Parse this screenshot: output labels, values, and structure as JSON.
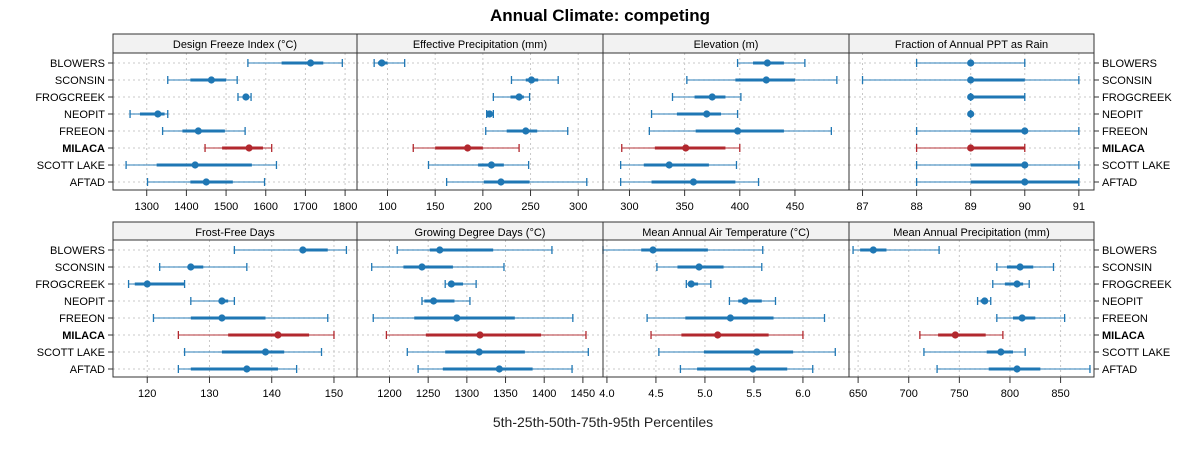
{
  "chart_data": {
    "type": "dotplot",
    "title": "Annual Climate: competing",
    "xlabel": "5th-25th-50th-75th-95th Percentiles",
    "sites": [
      "BLOWERS",
      "SCONSIN",
      "FROGCREEK",
      "NEOPIT",
      "FREEON",
      "MILACA",
      "SCOTT LAKE",
      "AFTAD"
    ],
    "highlight_site": "MILACA",
    "colors": {
      "default": "#1f77b4",
      "highlight": "#b2282e",
      "strip_bg": "#f2f2f2",
      "grid": "#c8c8c8"
    },
    "grid": true,
    "panels": [
      {
        "title": "Design Freeze Index (°C)",
        "xlim": [
          1215,
          1830
        ],
        "ticks": [
          1300,
          1400,
          1500,
          1600,
          1700,
          1800
        ],
        "tick_labels": [
          "1300",
          "1400",
          "1500",
          "1600",
          "1700",
          "1800"
        ],
        "percentiles": [
          [
            1555,
            1640,
            1713,
            1745,
            1793
          ],
          [
            1353,
            1410,
            1463,
            1500,
            1528
          ],
          [
            1530,
            1543,
            1550,
            1558,
            1563
          ],
          [
            1258,
            1283,
            1328,
            1345,
            1353
          ],
          [
            1340,
            1390,
            1430,
            1497,
            1548
          ],
          [
            1447,
            1490,
            1558,
            1593,
            1615
          ],
          [
            1248,
            1325,
            1422,
            1565,
            1627
          ],
          [
            1302,
            1410,
            1450,
            1517,
            1597
          ]
        ]
      },
      {
        "title": "Effective Precipitation (mm)",
        "xlim": [
          68,
          326
        ],
        "ticks": [
          100,
          150,
          200,
          250,
          300
        ],
        "tick_labels": [
          "100",
          "150",
          "200",
          "250",
          "300"
        ],
        "percentiles": [
          [
            86,
            90,
            94,
            100,
            118
          ],
          [
            230,
            245,
            251,
            258,
            279
          ],
          [
            211,
            229,
            238,
            243,
            249
          ],
          [
            204,
            205,
            207,
            209,
            211
          ],
          [
            203,
            225,
            245,
            257,
            289
          ],
          [
            127,
            150,
            184,
            200,
            238
          ],
          [
            143,
            195,
            209,
            222,
            248
          ],
          [
            162,
            201,
            219,
            249,
            309
          ]
        ]
      },
      {
        "title": "Elevation (m)",
        "xlim": [
          276,
          499
        ],
        "ticks": [
          300,
          350,
          400,
          450
        ],
        "tick_labels": [
          "300",
          "350",
          "400",
          "450"
        ],
        "percentiles": [
          [
            398,
            412,
            425,
            440,
            459
          ],
          [
            352,
            396,
            424,
            450,
            488
          ],
          [
            339,
            359,
            375,
            387,
            401
          ],
          [
            320,
            343,
            370,
            383,
            398
          ],
          [
            318,
            360,
            398,
            440,
            483
          ],
          [
            293,
            323,
            351,
            387,
            400
          ],
          [
            292,
            313,
            336,
            372,
            397
          ],
          [
            292,
            320,
            358,
            396,
            417
          ]
        ]
      },
      {
        "title": "Fraction of Annual PPT as Rain",
        "xlim": [
          86.75,
          91.28
        ],
        "ticks": [
          87,
          88,
          89,
          90,
          91
        ],
        "tick_labels": [
          "87",
          "88",
          "89",
          "90",
          "91"
        ],
        "percentiles": [
          [
            88,
            89,
            89,
            89,
            90
          ],
          [
            87,
            89,
            89,
            90,
            91
          ],
          [
            89,
            89,
            89,
            90,
            90
          ],
          [
            89,
            89,
            89,
            89,
            89
          ],
          [
            88,
            89,
            90,
            90,
            91
          ],
          [
            88,
            89,
            89,
            90,
            90
          ],
          [
            88,
            89,
            90,
            90,
            91
          ],
          [
            88,
            89,
            90,
            91,
            91
          ]
        ]
      },
      {
        "title": "Frost-Free Days",
        "xlim": [
          114.5,
          153.7
        ],
        "ticks": [
          120,
          130,
          140,
          150
        ],
        "tick_labels": [
          "120",
          "130",
          "140",
          "150"
        ],
        "percentiles": [
          [
            134,
            145,
            145,
            149,
            152
          ],
          [
            122,
            127,
            127,
            129,
            136
          ],
          [
            117,
            118,
            120,
            126,
            126
          ],
          [
            127,
            132,
            132,
            133,
            134
          ],
          [
            121,
            127,
            132,
            139,
            149
          ],
          [
            125,
            133,
            141,
            146,
            150
          ],
          [
            126,
            132,
            139,
            142,
            148
          ],
          [
            125,
            127,
            136,
            141,
            144
          ]
        ]
      },
      {
        "title": "Growing Degree Days (°C)",
        "xlim": [
          1158,
          1476
        ],
        "ticks": [
          1200,
          1250,
          1300,
          1350,
          1400,
          1450
        ],
        "tick_labels": [
          "1200",
          "1250",
          "1300",
          "1350",
          "1400",
          "1450"
        ],
        "percentiles": [
          [
            1210,
            1252,
            1265,
            1334,
            1410
          ],
          [
            1177,
            1218,
            1242,
            1282,
            1348
          ],
          [
            1272,
            1282,
            1280,
            1295,
            1312
          ],
          [
            1242,
            1245,
            1257,
            1284,
            1304
          ],
          [
            1179,
            1232,
            1287,
            1362,
            1437
          ],
          [
            1196,
            1247,
            1317,
            1396,
            1454
          ],
          [
            1223,
            1272,
            1316,
            1375,
            1457
          ],
          [
            1237,
            1269,
            1342,
            1385,
            1436
          ]
        ]
      },
      {
        "title": "Mean Annual Air Temperature (°C)",
        "xlim": [
          3.96,
          6.47
        ],
        "ticks": [
          4.0,
          4.5,
          5.0,
          5.5,
          6.0
        ],
        "tick_labels": [
          "4.0",
          "4.5",
          "5.0",
          "5.5",
          "6.0"
        ],
        "percentiles": [
          [
            3.96,
            4.35,
            4.47,
            5.03,
            5.59
          ],
          [
            4.51,
            4.72,
            4.94,
            5.19,
            5.58
          ],
          [
            4.81,
            4.84,
            4.86,
            4.93,
            5.06
          ],
          [
            5.25,
            5.34,
            5.41,
            5.58,
            5.72
          ],
          [
            4.41,
            4.8,
            5.26,
            5.7,
            6.22
          ],
          [
            4.45,
            4.76,
            5.13,
            5.65,
            6.0
          ],
          [
            4.53,
            4.99,
            5.53,
            5.9,
            6.33
          ],
          [
            4.75,
            4.92,
            5.49,
            5.84,
            6.1
          ]
        ]
      },
      {
        "title": "Mean Annual Precipitation (mm)",
        "xlim": [
          641,
          883
        ],
        "ticks": [
          650,
          700,
          750,
          800,
          850
        ],
        "tick_labels": [
          "650",
          "700",
          "750",
          "800",
          "850"
        ],
        "percentiles": [
          [
            645,
            652,
            665,
            678,
            730
          ],
          [
            787,
            797,
            810,
            823,
            843
          ],
          [
            783,
            795,
            807,
            813,
            819
          ],
          [
            768,
            771,
            775,
            777,
            781
          ],
          [
            787,
            803,
            812,
            825,
            854
          ],
          [
            711,
            729,
            746,
            776,
            793
          ],
          [
            715,
            777,
            791,
            803,
            815
          ],
          [
            728,
            779,
            807,
            830,
            879
          ]
        ]
      }
    ]
  }
}
